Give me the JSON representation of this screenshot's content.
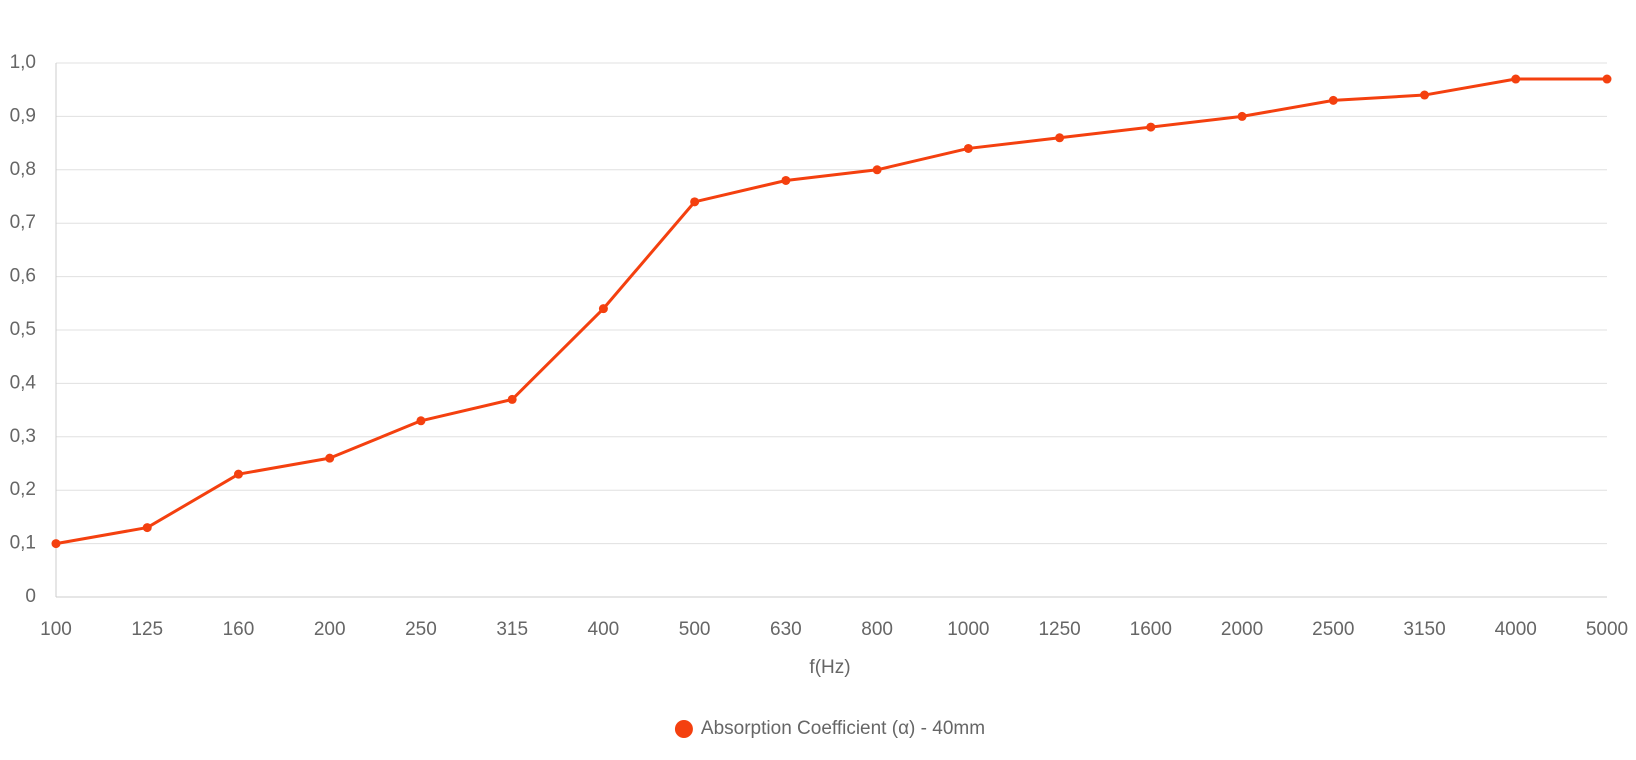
{
  "chart_data": {
    "type": "line",
    "x_label": "f(Hz)",
    "categories": [
      "100",
      "125",
      "160",
      "200",
      "250",
      "315",
      "400",
      "500",
      "630",
      "800",
      "1000",
      "1250",
      "1600",
      "2000",
      "2500",
      "3150",
      "4000",
      "5000"
    ],
    "series": [
      {
        "name": "Absorption Coefficient (α) - 40mm",
        "color": "#f4400f",
        "values": [
          0.1,
          0.13,
          0.23,
          0.26,
          0.33,
          0.37,
          0.54,
          0.74,
          0.78,
          0.8,
          0.84,
          0.86,
          0.88,
          0.9,
          0.93,
          0.94,
          0.97,
          0.97
        ]
      }
    ],
    "ylim": [
      0,
      1
    ],
    "yticks": [
      0,
      {
        "value": 0.1,
        "label": "0,1"
      },
      {
        "value": 0.2,
        "label": "0,2"
      },
      {
        "value": 0.3,
        "label": "0,3"
      },
      {
        "value": 0.4,
        "label": "0,4"
      },
      {
        "value": 0.5,
        "label": "0,5"
      },
      {
        "value": 0.6,
        "label": "0,6"
      },
      {
        "value": 0.7,
        "label": "0,7"
      },
      {
        "value": 0.8,
        "label": "0,8"
      },
      {
        "value": 0.9,
        "label": "0,9"
      },
      {
        "value": 1,
        "label": "1,0"
      }
    ],
    "grid": true,
    "legend": "bottom"
  }
}
